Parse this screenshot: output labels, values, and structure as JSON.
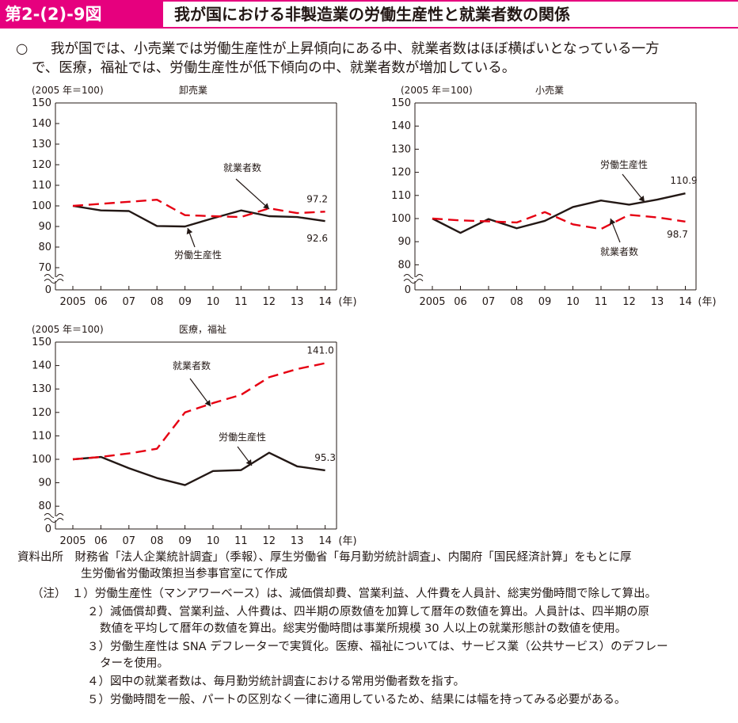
{
  "header": {
    "figure_label": "第2-(2)-9図",
    "title": "我が国における非製造業の労働生産性と就業者数の関係"
  },
  "summary": {
    "bullet": "○",
    "line1": "我が国では、小売業では労働生産性が上昇傾向にある中、就業者数はほぼ横ばいとなっている一方",
    "line2": "で、医療，福祉では、労働生産性が低下傾向の中、就業者数が増加している。"
  },
  "colors": {
    "productivity": "#231815",
    "employment": "#e60012",
    "accent": "#e6007e"
  },
  "chart_data": [
    {
      "type": "line",
      "title": "卸売業",
      "unit_label": "(2005 年＝100)",
      "xlabel": "(年)",
      "x": [
        "2005",
        "06",
        "07",
        "08",
        "09",
        "10",
        "11",
        "12",
        "13",
        "14"
      ],
      "yticks": [
        0,
        70,
        80,
        90,
        100,
        110,
        120,
        130,
        140,
        150
      ],
      "axis_break": true,
      "series": [
        {
          "name": "労働生産性",
          "style": "solid",
          "values": [
            100,
            97.8,
            97.5,
            90.2,
            90.0,
            94.0,
            97.8,
            95.0,
            94.6,
            92.6
          ],
          "end_label": "92.6"
        },
        {
          "name": "就業者数",
          "style": "dashed",
          "values": [
            100,
            101.0,
            102.0,
            103.0,
            95.5,
            95.0,
            94.6,
            98.8,
            96.5,
            97.2
          ],
          "end_label": "97.2"
        }
      ],
      "annotations": [
        "就業者数",
        "労働生産性"
      ]
    },
    {
      "type": "line",
      "title": "小売業",
      "unit_label": "(2005 年＝100)",
      "xlabel": "(年)",
      "x": [
        "2005",
        "06",
        "07",
        "08",
        "09",
        "10",
        "11",
        "12",
        "13",
        "14"
      ],
      "yticks": [
        0,
        80,
        90,
        100,
        110,
        120,
        130,
        140,
        150
      ],
      "axis_break": true,
      "series": [
        {
          "name": "労働生産性",
          "style": "solid",
          "values": [
            100,
            93.8,
            99.8,
            95.8,
            99.0,
            105.0,
            107.8,
            106.0,
            108.2,
            110.9
          ],
          "end_label": "110.9"
        },
        {
          "name": "就業者数",
          "style": "dashed",
          "values": [
            100,
            99.2,
            98.8,
            98.3,
            102.8,
            97.5,
            95.5,
            101.6,
            100.5,
            98.7
          ],
          "end_label": "98.7"
        }
      ],
      "annotations": [
        "労働生産性",
        "就業者数"
      ]
    },
    {
      "type": "line",
      "title": "医療，福祉",
      "unit_label": "(2005 年＝100)",
      "xlabel": "(年)",
      "x": [
        "2005",
        "06",
        "07",
        "08",
        "09",
        "10",
        "11",
        "12",
        "13",
        "14"
      ],
      "yticks": [
        0,
        80,
        90,
        100,
        110,
        120,
        130,
        140,
        150
      ],
      "axis_break": true,
      "series": [
        {
          "name": "労働生産性",
          "style": "solid",
          "values": [
            100,
            101.0,
            96.2,
            92.0,
            89.0,
            95.0,
            95.4,
            102.8,
            97.0,
            95.3
          ],
          "end_label": "95.3"
        },
        {
          "name": "就業者数",
          "style": "dashed",
          "values": [
            100,
            101.0,
            102.5,
            104.5,
            120.0,
            124.0,
            127.5,
            135.0,
            138.5,
            141.0
          ],
          "end_label": "141.0"
        }
      ],
      "annotations": [
        "就業者数",
        "労働生産性"
      ]
    }
  ],
  "notes": {
    "source": "資料出所　財務省「法人企業統計調査」（季報）、厚生労働省「毎月勤労統計調査」、内閣府「国民経済計算」をもとに厚",
    "source_cont": "生労働省労働政策担当参事官室にて作成",
    "note1": "（注）　１）労働生産性（マンアワーベース）は、減価償却費、営業利益、人件費を人員計、総実労働時間で除して算出。",
    "note2": "２）減価償却費、営業利益、人件費は、四半期の原数値を加算して暦年の数値を算出。人員計は、四半期の原",
    "note2_cont": "数値を平均して暦年の数値を算出。総実労働時間は事業所規模 30 人以上の就業形態計の数値を使用。",
    "note3": "３）労働生産性は SNA デフレーターで実質化。医療、福祉については、サービス業（公共サービス）のデフレー",
    "note3_cont": "ターを使用。",
    "note4": "４）図中の就業者数は、毎月勤労統計調査における常用労働者数を指す。",
    "note5": "５）労働時間を一般、パートの区別なく一律に適用しているため、結果には幅を持ってみる必要がある。"
  }
}
